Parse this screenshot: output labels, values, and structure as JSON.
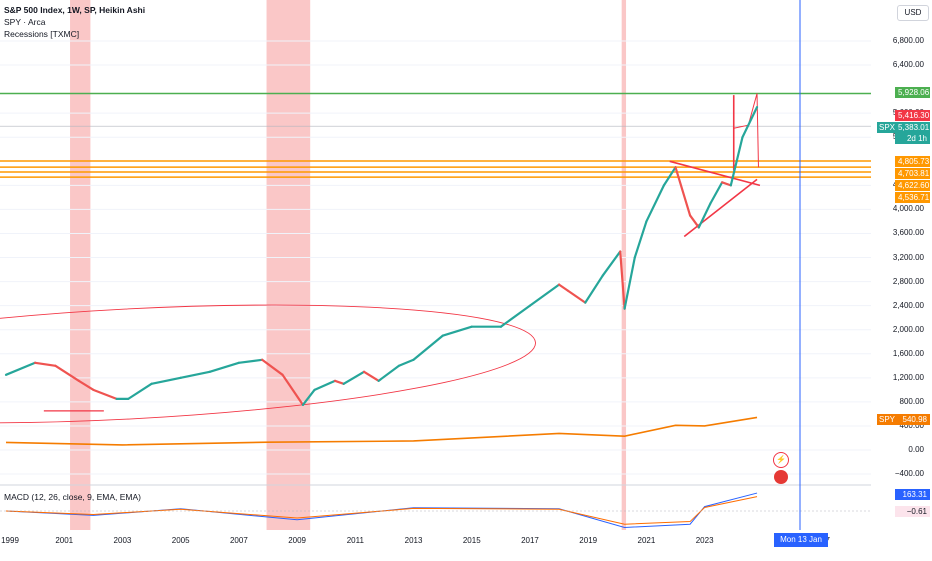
{
  "legend": {
    "title": "S&P 500 Index, 1W, SP, Heikin Ashi",
    "line2": "SPY · Arca",
    "line3": "Recessions [TXMC]"
  },
  "macd_legend": "MACD (12, 26, close, 9, EMA, EMA)",
  "currency_button": "USD",
  "price_ticks": [
    "6,800.00",
    "6,400.00",
    "5,600.00",
    "5,200.00",
    "4,400.00",
    "4,000.00",
    "3,600.00",
    "3,200.00",
    "2,800.00",
    "2,400.00",
    "2,000.00",
    "1,600.00",
    "1,200.00",
    "800.00",
    "400.00",
    "0.00",
    "−400.00"
  ],
  "price_tags": {
    "green": "5,928.06",
    "red": "5,416.30",
    "spx_label": "SPX",
    "spx_value": "5,383.01",
    "spx_time": "2d 1h",
    "orange_levels": [
      "4,805.73",
      "4,703.81",
      "4,622.60",
      "4,536.71"
    ],
    "spy_label": "SPY",
    "spy_value": "540.98",
    "macd_blue": "163.31",
    "macd_low": "−0.61"
  },
  "x_ticks": [
    "1999",
    "2001",
    "2003",
    "2005",
    "2007",
    "2009",
    "2011",
    "2013",
    "2015",
    "2017",
    "2019",
    "2021",
    "2023",
    "2027"
  ],
  "crosshair_date": "Mon 13 Jan '25",
  "colors": {
    "recession": "#f8b4b4",
    "green_level": "#4caf50",
    "orange_level": "#ff9800",
    "red_line": "#f23645",
    "crosshair": "#2962ff",
    "up": "#26a69a",
    "down": "#ef5350",
    "spy": "#f57c00"
  },
  "chart_data": {
    "type": "line",
    "title": "S&P 500 Index, 1W, SP, Heikin Ashi",
    "series": [
      {
        "name": "S&P 500 Index",
        "x": [
          1999,
          2000,
          2000.7,
          2001.5,
          2002,
          2002.8,
          2003.2,
          2004,
          2005,
          2006,
          2007,
          2007.8,
          2008.5,
          2009.2,
          2009.6,
          2010.3,
          2010.6,
          2011.3,
          2011.8,
          2012.5,
          2013,
          2014,
          2015,
          2016,
          2017,
          2018,
          2018.3,
          2018.9,
          2019.5,
          2020.1,
          2020.25,
          2020.6,
          2021,
          2021.6,
          2022,
          2022.5,
          2022.8,
          2023.2,
          2023.6,
          2023.9,
          2024.3,
          2024.8
        ],
        "y": [
          1250,
          1450,
          1400,
          1150,
          1000,
          850,
          850,
          1100,
          1200,
          1300,
          1450,
          1500,
          1250,
          750,
          1000,
          1150,
          1100,
          1300,
          1150,
          1400,
          1500,
          1900,
          2050,
          2050,
          2400,
          2750,
          2650,
          2450,
          2900,
          3300,
          2350,
          3200,
          3800,
          4400,
          4700,
          3900,
          3700,
          4100,
          4450,
          4400,
          5200,
          5700
        ]
      },
      {
        "name": "SPY",
        "x": [
          1999,
          2003,
          2008,
          2013,
          2018,
          2020.25,
          2022,
          2023,
          2024.8
        ],
        "y": [
          125,
          85,
          130,
          150,
          275,
          230,
          410,
          400,
          541
        ]
      },
      {
        "name": "MACD",
        "x": [
          1999,
          2002,
          2005,
          2009,
          2013,
          2018,
          2020.25,
          2022.5,
          2023,
          2024.8
        ],
        "y": [
          0,
          -40,
          20,
          -80,
          30,
          20,
          -150,
          -120,
          40,
          163
        ]
      }
    ],
    "recessions": [
      [
        2001.2,
        2001.9
      ],
      [
        2007.95,
        2009.45
      ],
      [
        2020.15,
        2020.3
      ]
    ],
    "horizontal_levels": [
      5928.06,
      4805.73,
      4703.81,
      4622.6,
      4536.71
    ],
    "ylim": [
      -600,
      7000
    ],
    "xlim": [
      1999,
      2028.2
    ]
  }
}
